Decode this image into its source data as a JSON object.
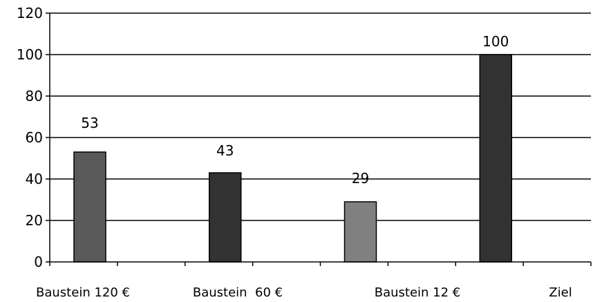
{
  "chart_data": {
    "type": "bar",
    "categories": [
      "Baustein 120 €",
      "Baustein  60 €",
      "Baustein 12 €",
      "Ziel"
    ],
    "values": [
      53,
      43,
      29,
      100
    ],
    "colors": [
      "#5a5a5a",
      "#333333",
      "#808080",
      "#333333"
    ],
    "ylim": [
      0,
      120
    ],
    "yticks": [
      0,
      20,
      40,
      60,
      80,
      100,
      120
    ],
    "grid": true,
    "legend": "none",
    "title": "",
    "xlabel": "",
    "ylabel": ""
  }
}
